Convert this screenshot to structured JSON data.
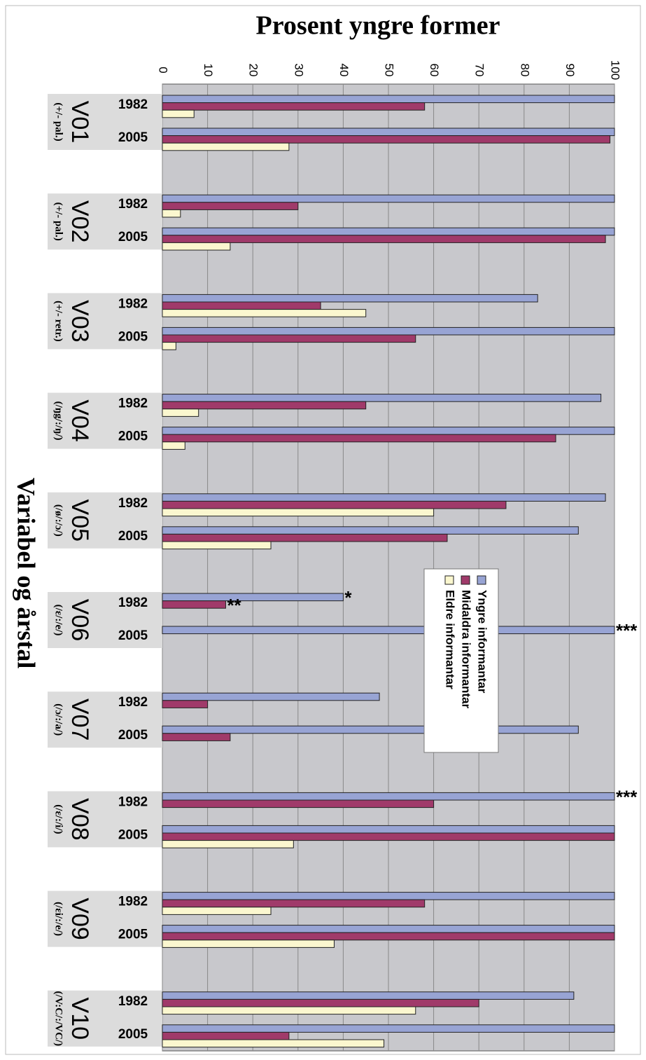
{
  "chart_data": {
    "type": "bar",
    "orientation": "horizontal",
    "title": "Prosent yngre former",
    "ylabel": "Variabel og årstal",
    "xlabel": "",
    "xlim": [
      0,
      100
    ],
    "x_ticks": [
      "0",
      "10",
      "20",
      "30",
      "40",
      "50",
      "60",
      "70",
      "80",
      "90",
      "100"
    ],
    "grid": true,
    "legend_position": "upper-right",
    "groups": [
      {
        "code": "V01",
        "sublabel": "(+/- pal.)",
        "years": [
          {
            "year": "1982",
            "values": [
              100,
              58,
              7
            ]
          },
          {
            "year": "2005",
            "values": [
              100,
              99,
              28
            ]
          }
        ]
      },
      {
        "code": "V02",
        "sublabel": "(+/- pal.)",
        "years": [
          {
            "year": "1982",
            "values": [
              100,
              30,
              4
            ]
          },
          {
            "year": "2005",
            "values": [
              100,
              98,
              15
            ]
          }
        ]
      },
      {
        "code": "V03",
        "sublabel": "(+/- retr.)",
        "years": [
          {
            "year": "1982",
            "values": [
              83,
              35,
              45
            ]
          },
          {
            "year": "2005",
            "values": [
              100,
              56,
              3
            ]
          }
        ]
      },
      {
        "code": "V04",
        "sublabel": "(/ŋg/:/ŋ/)",
        "years": [
          {
            "year": "1982",
            "values": [
              97,
              45,
              8
            ]
          },
          {
            "year": "2005",
            "values": [
              100,
              87,
              5
            ]
          }
        ]
      },
      {
        "code": "V05",
        "sublabel": "(/ø/:/ɔ/)",
        "years": [
          {
            "year": "1982",
            "values": [
              98,
              76,
              60
            ]
          },
          {
            "year": "2005",
            "values": [
              92,
              63,
              24
            ]
          }
        ]
      },
      {
        "code": "V06",
        "sublabel": "(/ɛ/:/e/)",
        "years": [
          {
            "year": "1982",
            "values": [
              40,
              14,
              null
            ]
          },
          {
            "year": "2005",
            "values": [
              100,
              null,
              null
            ]
          }
        ]
      },
      {
        "code": "V07",
        "sublabel": "(/ɔ/:/a/)",
        "years": [
          {
            "year": "1982",
            "values": [
              48,
              10,
              null
            ]
          },
          {
            "year": "2005",
            "values": [
              92,
              15,
              null
            ]
          }
        ]
      },
      {
        "code": "V08",
        "sublabel": "(/ɛ/:/i/)",
        "years": [
          {
            "year": "1982",
            "values": [
              100,
              60,
              null
            ]
          },
          {
            "year": "2005",
            "values": [
              100,
              100,
              29
            ]
          }
        ]
      },
      {
        "code": "V09",
        "sublabel": "(/ɛi/:/e/)",
        "years": [
          {
            "year": "1982",
            "values": [
              100,
              58,
              24
            ]
          },
          {
            "year": "2005",
            "values": [
              100,
              100,
              38
            ]
          }
        ]
      },
      {
        "code": "V10",
        "sublabel": "(/V:C/:/VC/)",
        "years": [
          {
            "year": "1982",
            "values": [
              91,
              70,
              56
            ]
          },
          {
            "year": "2005",
            "values": [
              100,
              28,
              49
            ]
          }
        ]
      }
    ],
    "series": [
      {
        "name": "Yngre informantar",
        "color": "#98a4d4"
      },
      {
        "name": "Midaldra informantar",
        "color": "#a03a6a"
      },
      {
        "name": "Eldre informantar",
        "color": "#fbf7cf"
      }
    ],
    "annotations": [
      {
        "text": "*",
        "group": 5,
        "year": 0,
        "series": 0
      },
      {
        "text": "**",
        "group": 5,
        "year": 0,
        "series": 1
      },
      {
        "text": "***",
        "group": 5,
        "year": 1,
        "series": 0
      },
      {
        "text": "***",
        "group": 7,
        "year": 0,
        "series": 0
      }
    ],
    "colors": {
      "plot_background": "#c8c8cc",
      "label_band": "#dcdcdc",
      "gridline": "#888888",
      "bar_outline": "#222222"
    }
  }
}
